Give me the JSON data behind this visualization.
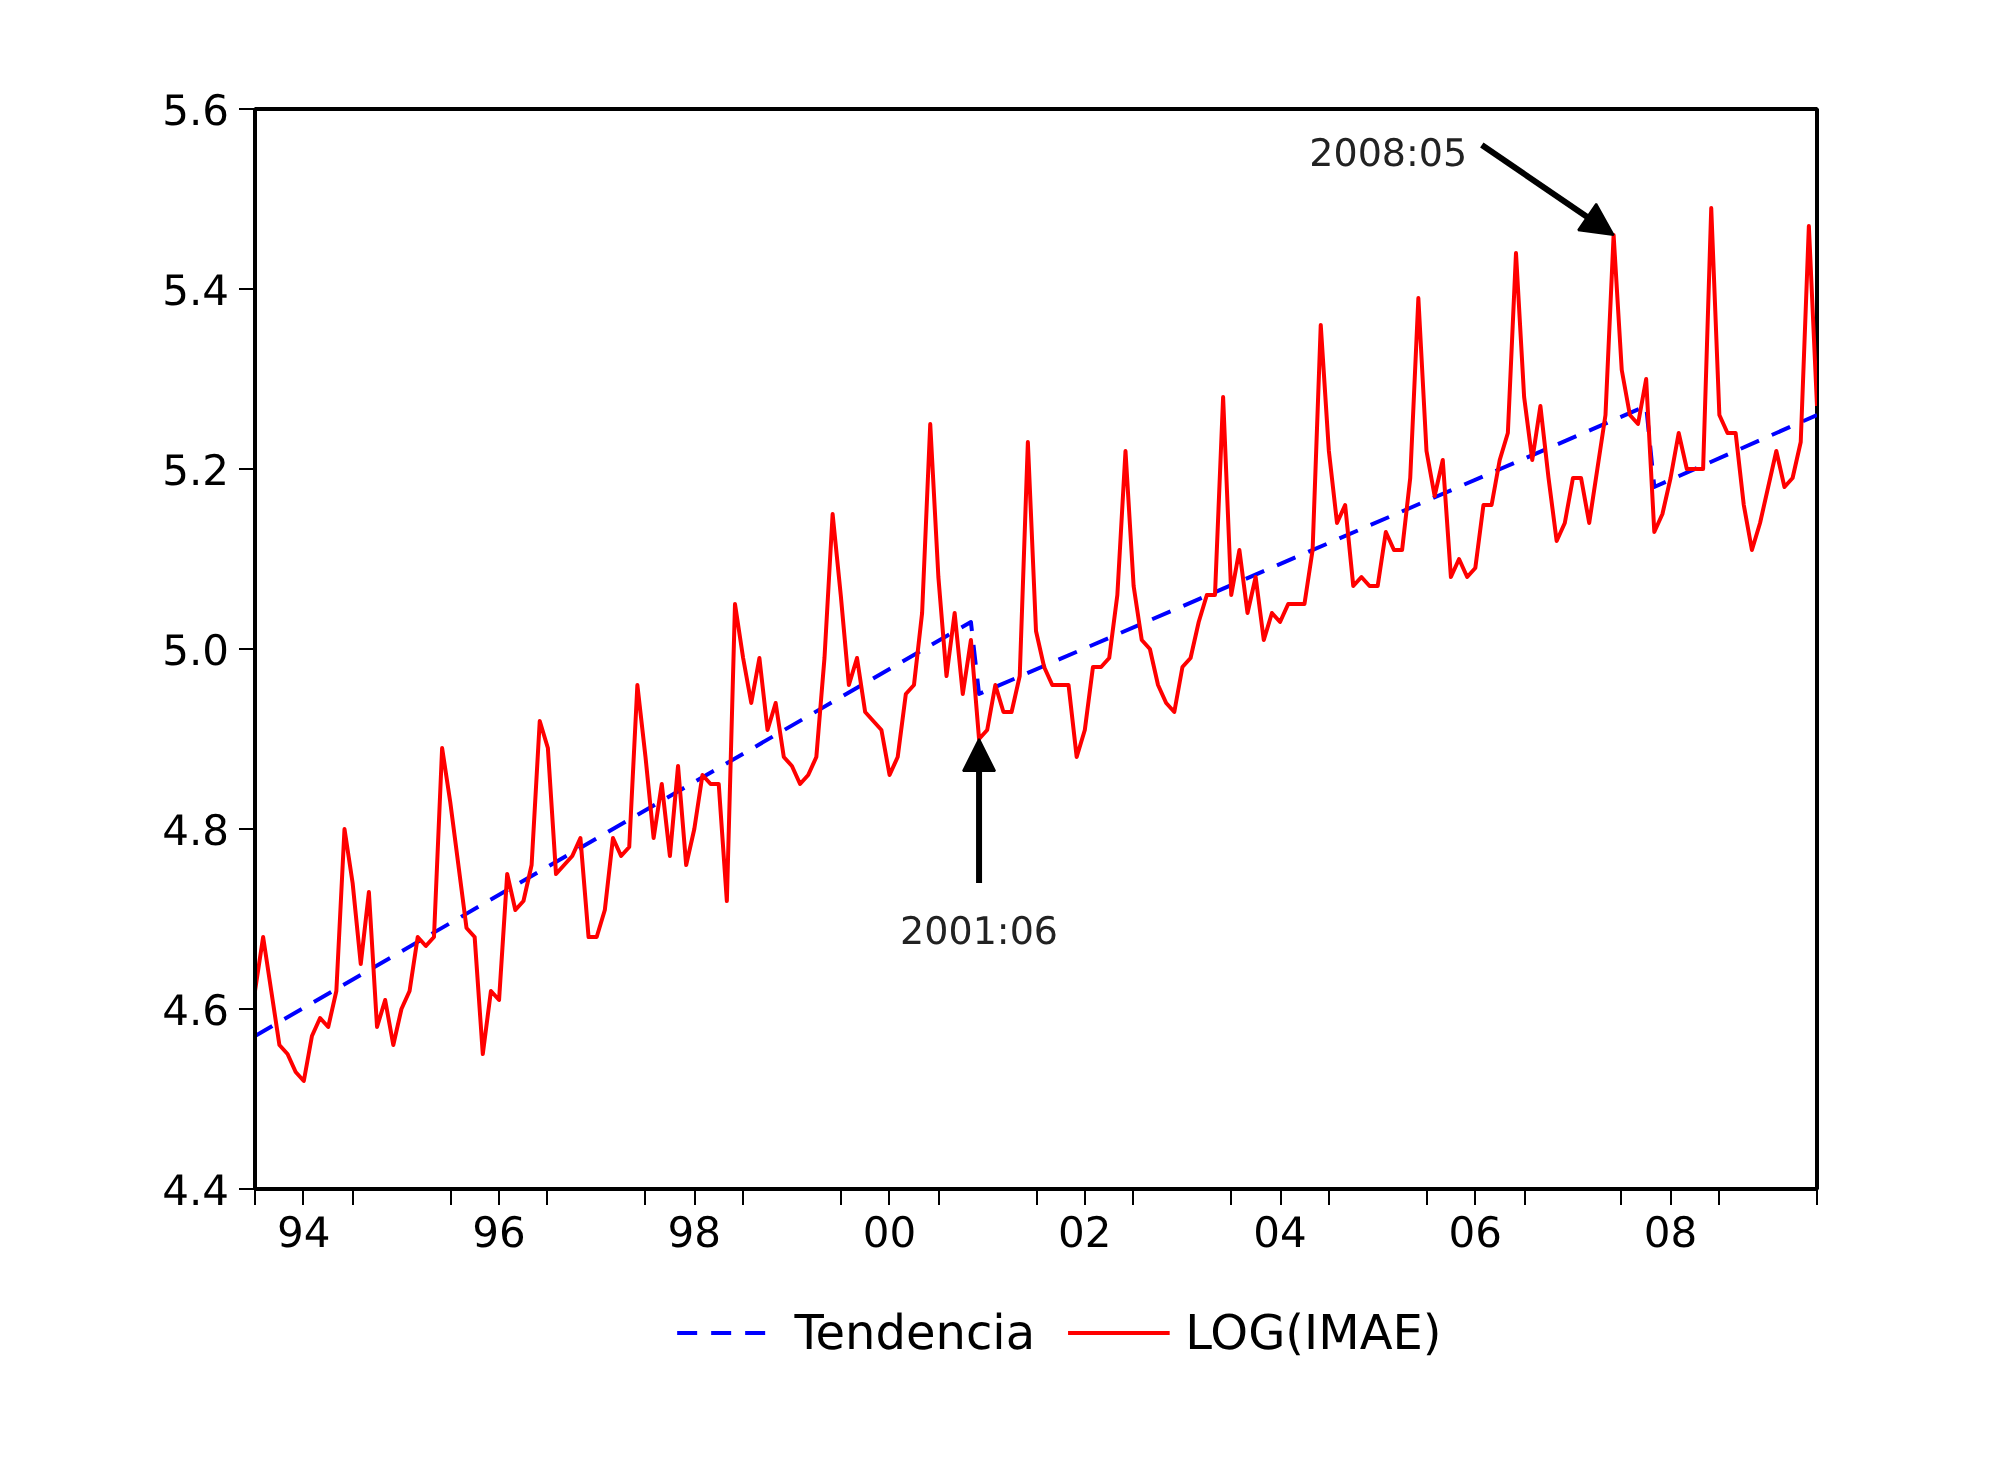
{
  "chart_data": {
    "type": "line",
    "xlim": [
      "1994-01",
      "2010-01"
    ],
    "ylim": [
      4.4,
      5.6
    ],
    "yticks": [
      4.4,
      4.6,
      4.8,
      {
        "value": 5.0,
        "label": "5.0"
      },
      5.2,
      5.4,
      5.6
    ],
    "xticks": [
      {
        "value": "1994-01",
        "label": null
      },
      {
        "value": "1994-07",
        "label": "94"
      },
      {
        "value": "1995-01",
        "label": null
      },
      {
        "value": "1996-01",
        "label": null
      },
      {
        "value": "1996-07",
        "label": "96"
      },
      {
        "value": "1997-01",
        "label": null
      },
      {
        "value": "1998-01",
        "label": null
      },
      {
        "value": "1998-07",
        "label": "98"
      },
      {
        "value": "1999-01",
        "label": null
      },
      {
        "value": "2000-01",
        "label": null
      },
      {
        "value": "2000-07",
        "label": "00"
      },
      {
        "value": "2001-01",
        "label": null
      },
      {
        "value": "2002-01",
        "label": null
      },
      {
        "value": "2002-07",
        "label": "02"
      },
      {
        "value": "2003-01",
        "label": null
      },
      {
        "value": "2004-01",
        "label": null
      },
      {
        "value": "2004-07",
        "label": "04"
      },
      {
        "value": "2005-01",
        "label": null
      },
      {
        "value": "2006-01",
        "label": null
      },
      {
        "value": "2006-07",
        "label": "06"
      },
      {
        "value": "2007-01",
        "label": null
      },
      {
        "value": "2008-01",
        "label": null
      },
      {
        "value": "2008-07",
        "label": "08"
      },
      {
        "value": "2009-01",
        "label": null
      },
      {
        "value": "2010-01",
        "label": null
      }
    ],
    "grid": false,
    "legend": "bottom",
    "marker": "none",
    "series": [
      {
        "name": "Tendencia",
        "color": "#0000ff",
        "line_style": "dashed",
        "x": [
          "1994-01",
          "2001-05",
          "2001-06",
          "2008-04",
          "2008-05",
          "2010-01"
        ],
        "values": [
          4.57,
          5.03,
          4.95,
          5.27,
          5.18,
          5.26
        ]
      },
      {
        "name": "LOG(IMAE)",
        "color": "#ff0000",
        "line_style": "solid",
        "x": [
          "1994-01",
          "1994-02",
          "1994-03",
          "1994-04",
          "1994-05",
          "1994-06",
          "1994-07",
          "1994-08",
          "1994-09",
          "1994-10",
          "1994-11",
          "1994-12",
          "1995-01",
          "1995-02",
          "1995-03",
          "1995-04",
          "1995-05",
          "1995-06",
          "1995-07",
          "1995-08",
          "1995-09",
          "1995-10",
          "1995-11",
          "1995-12",
          "1996-01",
          "1996-02",
          "1996-03",
          "1996-04",
          "1996-05",
          "1996-06",
          "1996-07",
          "1996-08",
          "1996-09",
          "1996-10",
          "1996-11",
          "1996-12",
          "1997-01",
          "1997-02",
          "1997-03",
          "1997-04",
          "1997-05",
          "1997-06",
          "1997-07",
          "1997-08",
          "1997-09",
          "1997-10",
          "1997-11",
          "1997-12",
          "1998-01",
          "1998-02",
          "1998-03",
          "1998-04",
          "1998-05",
          "1998-06",
          "1998-07",
          "1998-08",
          "1998-09",
          "1998-10",
          "1998-11",
          "1998-12",
          "1999-01",
          "1999-02",
          "1999-03",
          "1999-04",
          "1999-05",
          "1999-06",
          "1999-07",
          "1999-08",
          "1999-09",
          "1999-10",
          "1999-11",
          "1999-12",
          "2000-01",
          "2000-02",
          "2000-03",
          "2000-04",
          "2000-05",
          "2000-06",
          "2000-07",
          "2000-08",
          "2000-09",
          "2000-10",
          "2000-11",
          "2000-12",
          "2001-01",
          "2001-02",
          "2001-03",
          "2001-04",
          "2001-05",
          "2001-06",
          "2001-07",
          "2001-08",
          "2001-09",
          "2001-10",
          "2001-11",
          "2001-12",
          "2002-01",
          "2002-02",
          "2002-03",
          "2002-04",
          "2002-05",
          "2002-06",
          "2002-07",
          "2002-08",
          "2002-09",
          "2002-10",
          "2002-11",
          "2002-12",
          "2003-01",
          "2003-02",
          "2003-03",
          "2003-04",
          "2003-05",
          "2003-06",
          "2003-07",
          "2003-08",
          "2003-09",
          "2003-10",
          "2003-11",
          "2003-12",
          "2004-01",
          "2004-02",
          "2004-03",
          "2004-04",
          "2004-05",
          "2004-06",
          "2004-07",
          "2004-08",
          "2004-09",
          "2004-10",
          "2004-11",
          "2004-12",
          "2005-01",
          "2005-02",
          "2005-03",
          "2005-04",
          "2005-05",
          "2005-06",
          "2005-07",
          "2005-08",
          "2005-09",
          "2005-10",
          "2005-11",
          "2005-12",
          "2006-01",
          "2006-02",
          "2006-03",
          "2006-04",
          "2006-05",
          "2006-06",
          "2006-07",
          "2006-08",
          "2006-09",
          "2006-10",
          "2006-11",
          "2006-12",
          "2007-01",
          "2007-02",
          "2007-03",
          "2007-04",
          "2007-05",
          "2007-06",
          "2007-07",
          "2007-08",
          "2007-09",
          "2007-10",
          "2007-11",
          "2007-12",
          "2008-01",
          "2008-02",
          "2008-03",
          "2008-04",
          "2008-05",
          "2008-06",
          "2008-07",
          "2008-08",
          "2008-09",
          "2008-10",
          "2008-11",
          "2008-12",
          "2009-01",
          "2009-02",
          "2009-03",
          "2009-04",
          "2009-05",
          "2009-06",
          "2009-07",
          "2009-08",
          "2009-09",
          "2009-10",
          "2009-11",
          "2009-12",
          "2010-01"
        ],
        "values": [
          4.62,
          4.68,
          4.62,
          4.56,
          4.55,
          4.53,
          4.52,
          4.57,
          4.59,
          4.58,
          4.62,
          4.8,
          4.74,
          4.65,
          4.73,
          4.58,
          4.61,
          4.56,
          4.6,
          4.62,
          4.68,
          4.67,
          4.68,
          4.89,
          4.83,
          4.76,
          4.69,
          4.68,
          4.55,
          4.62,
          4.61,
          4.75,
          4.71,
          4.72,
          4.76,
          4.92,
          4.89,
          4.75,
          4.76,
          4.77,
          4.79,
          4.68,
          4.68,
          4.71,
          4.79,
          4.77,
          4.78,
          4.96,
          4.88,
          4.79,
          4.85,
          4.77,
          4.87,
          4.76,
          4.8,
          4.86,
          4.85,
          4.85,
          4.72,
          5.05,
          4.99,
          4.94,
          4.99,
          4.91,
          4.94,
          4.88,
          4.87,
          4.85,
          4.86,
          4.88,
          4.99,
          5.15,
          5.06,
          4.96,
          4.99,
          4.93,
          4.92,
          4.91,
          4.86,
          4.88,
          4.95,
          4.96,
          5.04,
          5.25,
          5.08,
          4.97,
          5.04,
          4.95,
          5.01,
          4.9,
          4.91,
          4.96,
          4.93,
          4.93,
          4.97,
          5.23,
          5.02,
          4.98,
          4.96,
          4.96,
          4.96,
          4.88,
          4.91,
          4.98,
          4.98,
          4.99,
          5.06,
          5.22,
          5.07,
          5.01,
          5.0,
          4.96,
          4.94,
          4.93,
          4.98,
          4.99,
          5.03,
          5.06,
          5.06,
          5.28,
          5.06,
          5.11,
          5.04,
          5.08,
          5.01,
          5.04,
          5.03,
          5.05,
          5.05,
          5.05,
          5.11,
          5.36,
          5.22,
          5.14,
          5.16,
          5.07,
          5.08,
          5.07,
          5.07,
          5.13,
          5.11,
          5.11,
          5.19,
          5.39,
          5.22,
          5.17,
          5.21,
          5.08,
          5.1,
          5.08,
          5.09,
          5.16,
          5.16,
          5.21,
          5.24,
          5.44,
          5.28,
          5.21,
          5.27,
          5.19,
          5.12,
          5.14,
          5.19,
          5.19,
          5.14,
          5.2,
          5.26,
          5.46,
          5.31,
          5.26,
          5.25,
          5.3,
          5.13,
          5.15,
          5.19,
          5.24,
          5.2,
          5.2,
          5.2,
          5.49,
          5.26,
          5.24,
          5.24,
          5.16,
          5.11,
          5.14,
          5.18,
          5.22,
          5.18,
          5.19,
          5.23,
          5.47,
          5.27
        ]
      }
    ],
    "annotations": [
      {
        "text": "2001:06",
        "x": "2001-06",
        "y": 4.9
      },
      {
        "text": "2008:05",
        "x": "2007-12",
        "y": 5.46
      }
    ]
  }
}
